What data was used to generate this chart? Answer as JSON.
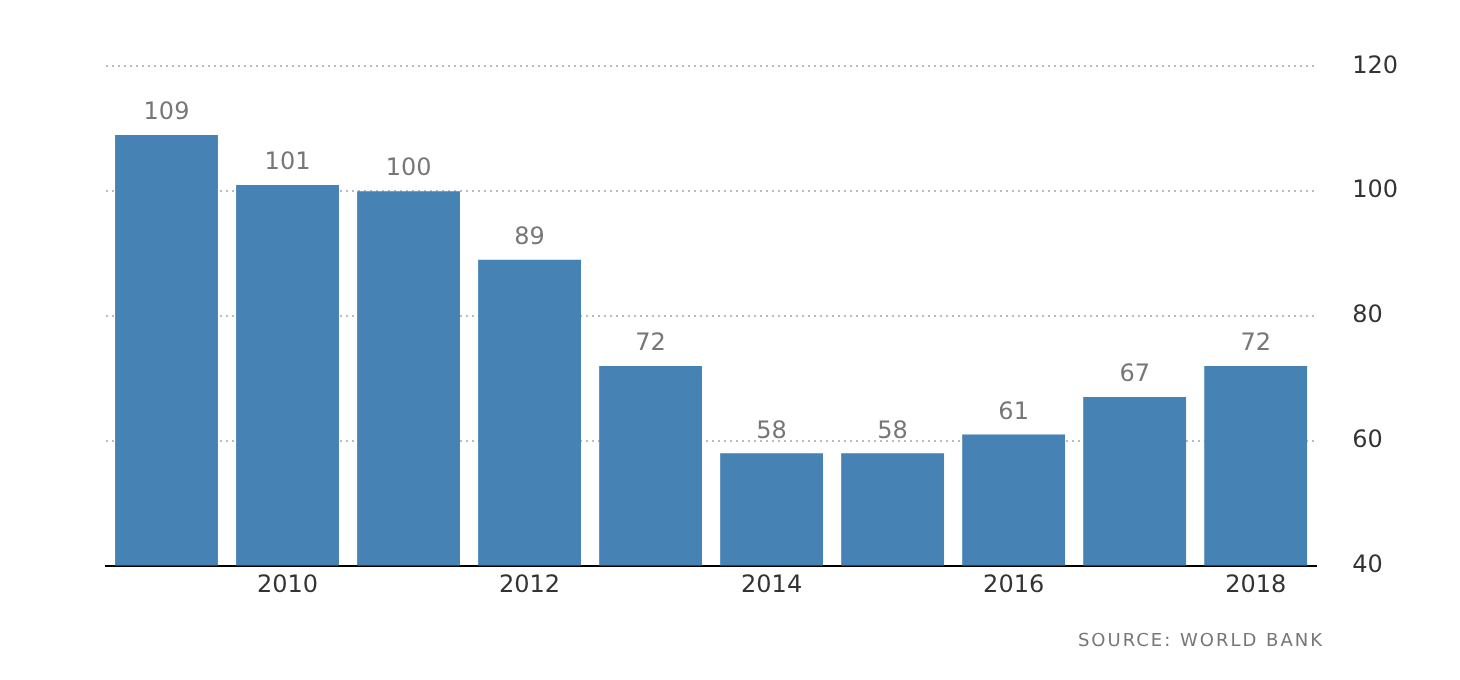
{
  "chart_data": {
    "type": "bar",
    "categories": [
      null,
      "2010",
      null,
      "2012",
      null,
      "2014",
      null,
      "2016",
      null,
      "2018"
    ],
    "values": [
      109,
      101,
      100,
      89,
      72,
      58,
      58,
      61,
      67,
      72
    ],
    "color": "#4682b4",
    "ylim": [
      40,
      120
    ],
    "yticks": [
      40,
      60,
      80,
      100,
      120
    ],
    "grid": "y",
    "data_labels": true,
    "annotations": [
      "SOURCE: WORLD BANK"
    ]
  }
}
